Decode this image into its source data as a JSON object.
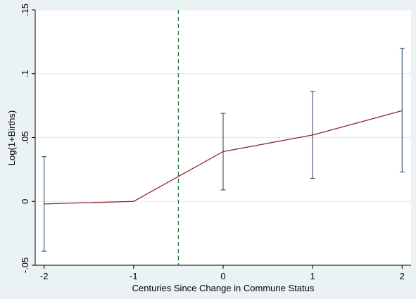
{
  "chart_data": {
    "type": "line",
    "xlabel": "Centuries Since Change in Commune Status",
    "ylabel": "Log(1+Births)",
    "x": [
      -2,
      -1,
      0,
      1,
      2
    ],
    "estimate": [
      -0.002,
      0.0,
      0.039,
      0.052,
      0.071
    ],
    "ci_low": [
      -0.039,
      null,
      0.009,
      0.018,
      0.023
    ],
    "ci_high": [
      0.035,
      null,
      0.069,
      0.086,
      0.12
    ],
    "xlim": [
      -2.1,
      2.1
    ],
    "ylim": [
      -0.05,
      0.15
    ],
    "xticks": [
      -2,
      -1,
      0,
      1,
      2
    ],
    "xtick_labels": [
      "-2",
      "-1",
      "0",
      "1",
      "2"
    ],
    "yticks": [
      -0.05,
      0,
      0.05,
      0.1,
      0.15
    ],
    "ytick_labels": [
      "-.05",
      "0",
      ".05",
      ".1",
      ".15"
    ],
    "reference_line_x": -0.5,
    "grid": "horizontal",
    "colors": {
      "line": "#8c2a2e",
      "error_bars": "#1f3f5e",
      "reference_line": "#1e7a3c",
      "gridline": "#e6eaeb",
      "plot_background": "#ffffff",
      "figure_background": "#eaf2f3"
    }
  }
}
